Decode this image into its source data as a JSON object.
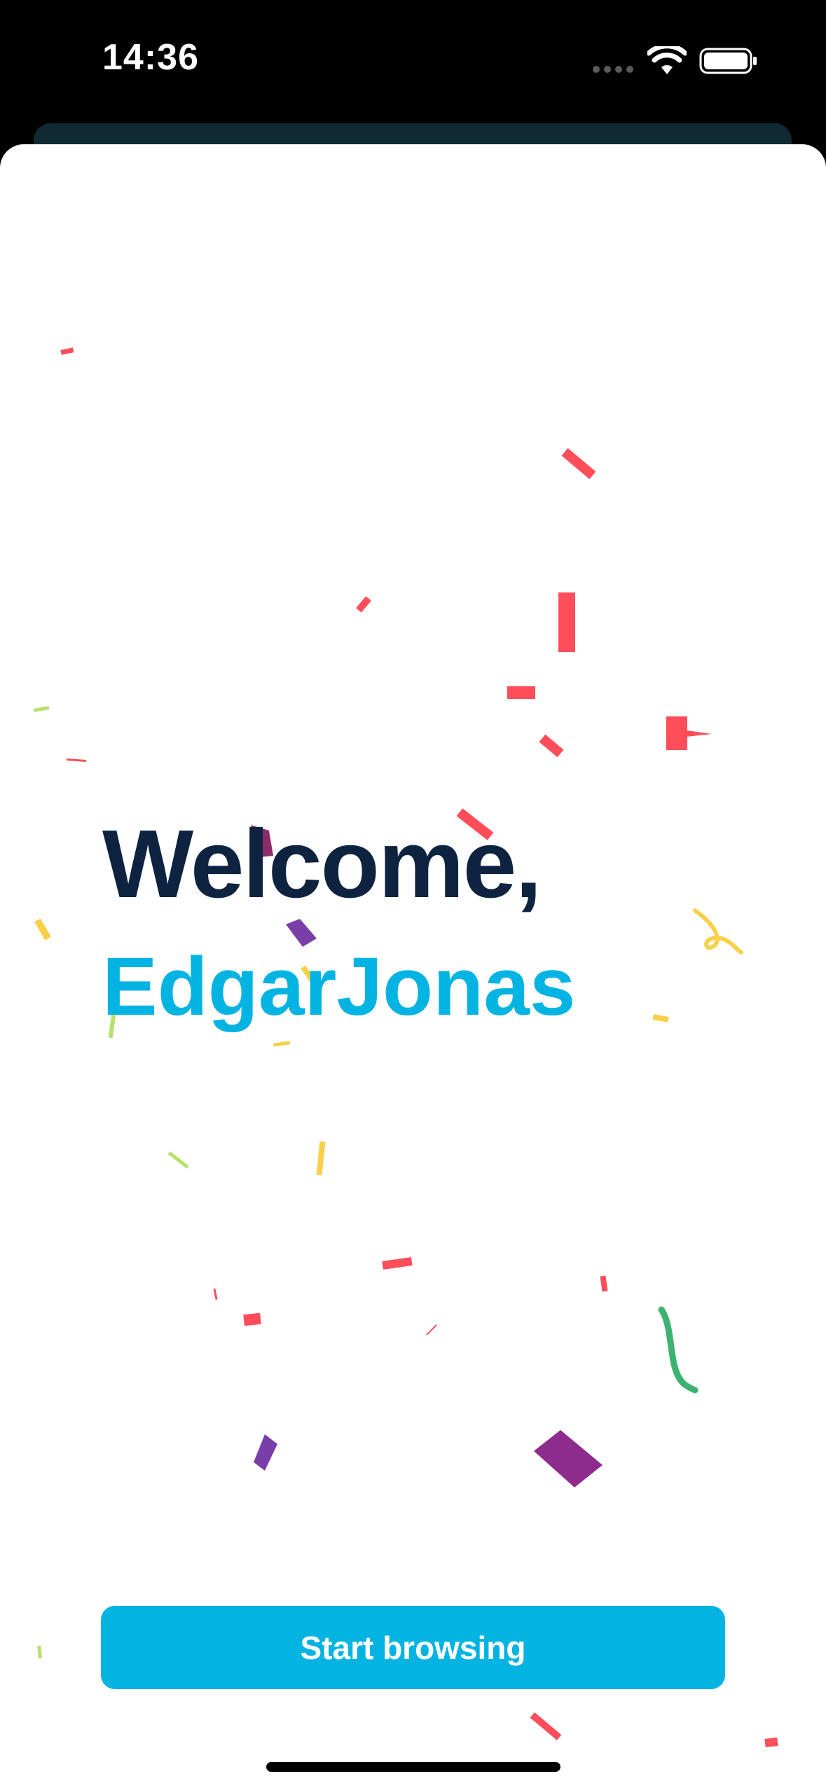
{
  "status_bar": {
    "time": "14:36",
    "icons": [
      "signal-dots-icon",
      "wifi-icon",
      "battery-icon"
    ]
  },
  "welcome": {
    "greeting": "Welcome,",
    "user_name": "EdgarJonas"
  },
  "actions": {
    "start_label": "Start browsing"
  },
  "colors": {
    "title": "#0d2340",
    "accent": "#03b4e3",
    "background": "#ffffff",
    "status_bar": "#000000"
  }
}
